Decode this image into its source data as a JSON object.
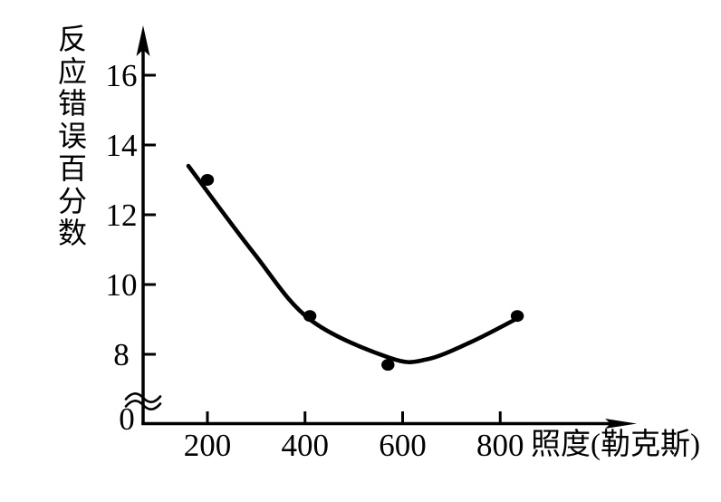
{
  "chart_data": {
    "type": "scatter",
    "title": "",
    "xlabel": "照度(勒克斯)",
    "ylabel": "反应错误百分数",
    "x_ticks": [
      200,
      400,
      600,
      800
    ],
    "y_ticks": [
      16,
      14,
      12,
      10,
      8
    ],
    "y_origin_label": "0",
    "y_axis_break": true,
    "xlim": [
      0,
      900
    ],
    "ylim": [
      0,
      17
    ],
    "grid": false,
    "legend": "none",
    "points": [
      {
        "x": 200,
        "y": 13.0
      },
      {
        "x": 410,
        "y": 9.1
      },
      {
        "x": 570,
        "y": 7.7
      },
      {
        "x": 835,
        "y": 9.1
      }
    ],
    "trend_curve": [
      {
        "x": 161,
        "y": 13.4
      },
      {
        "x": 295,
        "y": 10.9
      },
      {
        "x": 410,
        "y": 9.0
      },
      {
        "x": 573,
        "y": 7.9
      },
      {
        "x": 648,
        "y": 7.85
      },
      {
        "x": 740,
        "y": 8.35
      },
      {
        "x": 831,
        "y": 9.0
      }
    ],
    "colors": {
      "ink": "#000000",
      "background": "#ffffff"
    }
  }
}
